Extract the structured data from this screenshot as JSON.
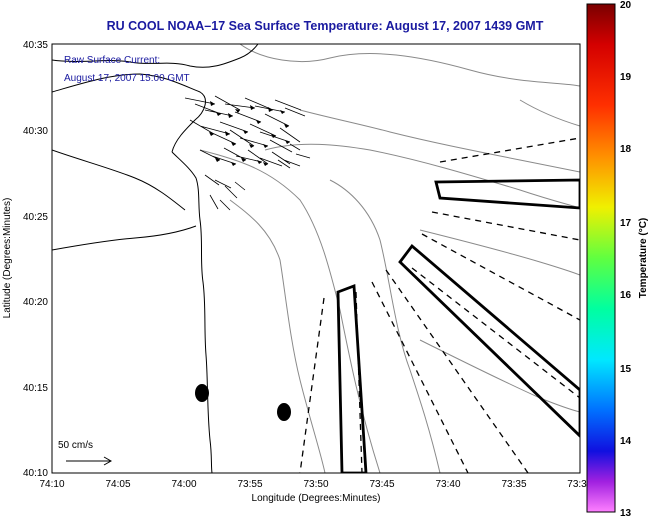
{
  "title": "RU COOL  NOAA–17  Sea Surface Temperature:  August 17, 2007 1439 GMT",
  "current_label": {
    "line1": "Raw Surface Current:",
    "line2": "August 17, 2007 15:00 GMT"
  },
  "scale_label": "50 cm/s",
  "x_axis": {
    "label": "Longitude (Degrees:Minutes)",
    "ticks": [
      "74:10",
      "74:05",
      "74:00",
      "73:55",
      "73:50",
      "73:45",
      "73:40",
      "73:35",
      "73:3"
    ]
  },
  "y_axis": {
    "label": "Latitude (Degrees:Minutes)",
    "ticks": [
      "40:35",
      "40:30",
      "40:25",
      "40:20",
      "40:15",
      "40:10"
    ]
  },
  "colorbar": {
    "label": "Temperature (°C)",
    "ticks": [
      "20",
      "19",
      "18",
      "17",
      "16",
      "15",
      "14",
      "13"
    ],
    "min": 13,
    "max": 20
  },
  "colors": {
    "title": "#1a1aa0",
    "annotation": "#1a1aa0",
    "frame": "#000000"
  }
}
